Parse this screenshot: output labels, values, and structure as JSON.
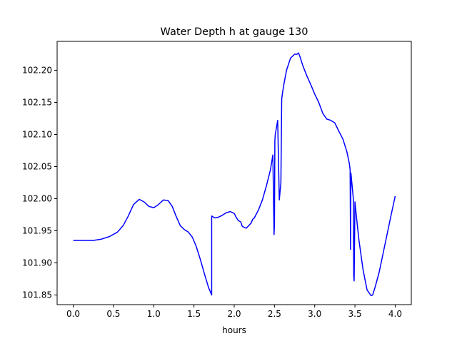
{
  "chart_data": {
    "type": "line",
    "title": "Water Depth h at gauge 130",
    "xlabel": "hours",
    "ylabel": "",
    "xlim": [
      -0.2,
      4.2
    ],
    "ylim": [
      101.835,
      102.245
    ],
    "xticks": [
      0.0,
      0.5,
      1.0,
      1.5,
      2.0,
      2.5,
      3.0,
      3.5,
      4.0
    ],
    "xtick_labels": [
      "0.0",
      "0.5",
      "1.0",
      "1.5",
      "2.0",
      "2.5",
      "3.0",
      "3.5",
      "4.0"
    ],
    "yticks": [
      101.85,
      101.9,
      101.95,
      102.0,
      102.05,
      102.1,
      102.15,
      102.2
    ],
    "ytick_labels": [
      "101.85",
      "101.90",
      "101.95",
      "102.00",
      "102.05",
      "102.10",
      "102.15",
      "102.20"
    ],
    "grid": false,
    "line_color": "#0000ff",
    "series": [
      {
        "x": [
          0.0,
          0.25,
          0.35,
          0.45,
          0.55,
          0.62,
          0.68,
          0.75,
          0.82,
          0.88,
          0.94,
          1.0,
          1.05,
          1.12,
          1.18,
          1.23,
          1.28,
          1.33,
          1.38,
          1.43,
          1.48,
          1.53,
          1.58,
          1.63,
          1.68,
          1.72,
          1.72,
          1.76,
          1.8,
          1.85,
          1.9,
          1.95,
          2.0,
          2.02,
          2.05,
          2.08,
          2.1,
          2.13,
          2.15,
          2.18,
          2.21,
          2.23,
          2.25,
          2.27,
          2.3,
          2.35,
          2.4,
          2.45,
          2.48,
          2.495,
          2.5,
          2.505,
          2.51,
          2.54,
          2.56,
          2.58,
          2.59,
          2.6,
          2.62,
          2.65,
          2.7,
          2.75,
          2.78,
          2.8,
          2.82,
          2.85,
          2.9,
          2.95,
          3.0,
          3.05,
          3.1,
          3.15,
          3.2,
          3.25,
          3.3,
          3.35,
          3.4,
          3.43,
          3.44,
          3.445,
          3.45,
          3.48,
          3.485,
          3.49,
          3.5,
          3.52,
          3.55,
          3.6,
          3.65,
          3.7,
          3.72,
          3.75,
          3.8,
          3.85,
          3.9,
          3.95,
          4.0
        ],
        "y": [
          101.935,
          101.935,
          101.937,
          101.941,
          101.948,
          101.958,
          101.972,
          101.991,
          101.999,
          101.995,
          101.988,
          101.986,
          101.99,
          101.998,
          101.997,
          101.988,
          101.972,
          101.958,
          101.952,
          101.948,
          101.94,
          101.925,
          101.905,
          101.883,
          101.862,
          101.85,
          101.973,
          101.97,
          101.971,
          101.974,
          101.978,
          101.98,
          101.977,
          101.972,
          101.966,
          101.964,
          101.957,
          101.955,
          101.954,
          101.958,
          101.962,
          101.968,
          101.97,
          101.975,
          101.982,
          101.998,
          102.02,
          102.045,
          102.068,
          101.944,
          101.96,
          102.09,
          102.1,
          102.122,
          101.998,
          102.025,
          102.155,
          102.165,
          102.18,
          102.2,
          102.219,
          102.225,
          102.225,
          102.227,
          102.22,
          102.208,
          102.192,
          102.178,
          102.163,
          102.15,
          102.133,
          102.124,
          102.122,
          102.118,
          102.105,
          102.093,
          102.073,
          102.055,
          102.045,
          101.921,
          102.04,
          102.0,
          101.88,
          101.872,
          101.995,
          101.97,
          101.935,
          101.89,
          101.858,
          101.849,
          101.85,
          101.862,
          101.885,
          101.915,
          101.945,
          101.975,
          102.004
        ]
      }
    ]
  }
}
